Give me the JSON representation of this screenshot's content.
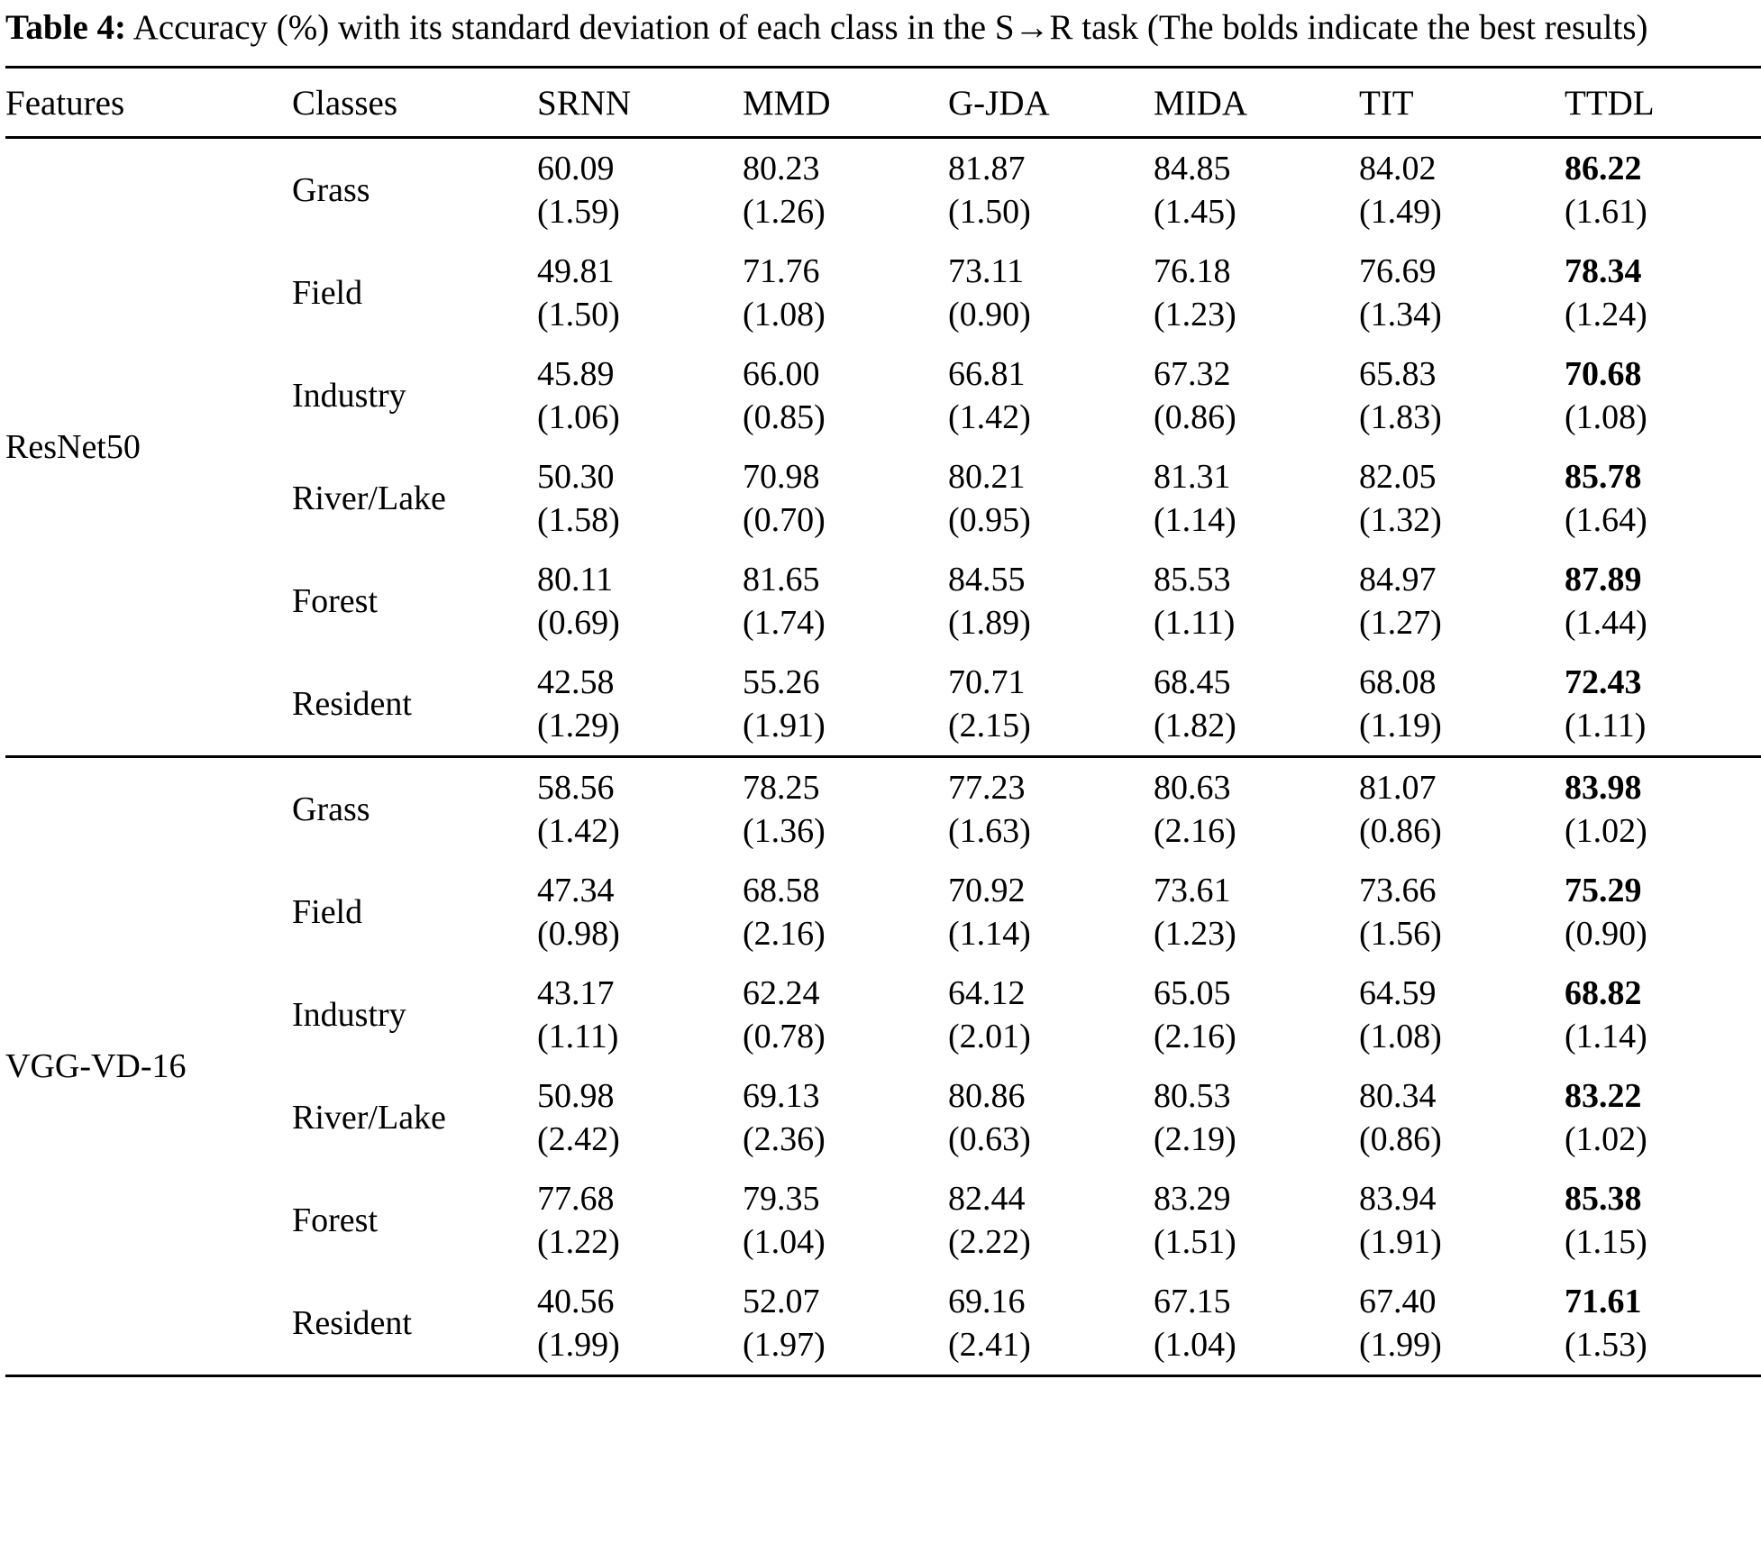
{
  "caption": {
    "label": "Table 4:",
    "text": " Accuracy (%) with its standard deviation of each class in the S→R task (The bolds indicate the best results)"
  },
  "table": {
    "columns": [
      "Features",
      "Classes",
      "SRNN",
      "MMD",
      "G-JDA",
      "MIDA",
      "TIT",
      "TTDL"
    ],
    "bold_column_index": 5,
    "groups": [
      {
        "feature": "ResNet50",
        "rows": [
          {
            "class": "Grass",
            "values": [
              "60.09",
              "80.23",
              "81.87",
              "84.85",
              "84.02",
              "86.22"
            ],
            "stds": [
              "(1.59)",
              "(1.26)",
              "(1.50)",
              "(1.45)",
              "(1.49)",
              "(1.61)"
            ]
          },
          {
            "class": "Field",
            "values": [
              "49.81",
              "71.76",
              "73.11",
              "76.18",
              "76.69",
              "78.34"
            ],
            "stds": [
              "(1.50)",
              "(1.08)",
              "(0.90)",
              "(1.23)",
              "(1.34)",
              "(1.24)"
            ]
          },
          {
            "class": "Industry",
            "values": [
              "45.89",
              "66.00",
              "66.81",
              "67.32",
              "65.83",
              "70.68"
            ],
            "stds": [
              "(1.06)",
              "(0.85)",
              "(1.42)",
              "(0.86)",
              "(1.83)",
              "(1.08)"
            ]
          },
          {
            "class": "River/Lake",
            "values": [
              "50.30",
              "70.98",
              "80.21",
              "81.31",
              "82.05",
              "85.78"
            ],
            "stds": [
              "(1.58)",
              "(0.70)",
              "(0.95)",
              "(1.14)",
              "(1.32)",
              "(1.64)"
            ]
          },
          {
            "class": "Forest",
            "values": [
              "80.11",
              "81.65",
              "84.55",
              "85.53",
              "84.97",
              "87.89"
            ],
            "stds": [
              "(0.69)",
              "(1.74)",
              "(1.89)",
              "(1.11)",
              "(1.27)",
              "(1.44)"
            ]
          },
          {
            "class": "Resident",
            "values": [
              "42.58",
              "55.26",
              "70.71",
              "68.45",
              "68.08",
              "72.43"
            ],
            "stds": [
              "(1.29)",
              "(1.91)",
              "(2.15)",
              "(1.82)",
              "(1.19)",
              "(1.11)"
            ]
          }
        ]
      },
      {
        "feature": "VGG-VD-16",
        "rows": [
          {
            "class": "Grass",
            "values": [
              "58.56",
              "78.25",
              "77.23",
              "80.63",
              "81.07",
              "83.98"
            ],
            "stds": [
              "(1.42)",
              "(1.36)",
              "(1.63)",
              "(2.16)",
              "(0.86)",
              "(1.02)"
            ]
          },
          {
            "class": "Field",
            "values": [
              "47.34",
              "68.58",
              "70.92",
              "73.61",
              "73.66",
              "75.29"
            ],
            "stds": [
              "(0.98)",
              "(2.16)",
              "(1.14)",
              "(1.23)",
              "(1.56)",
              "(0.90)"
            ]
          },
          {
            "class": "Industry",
            "values": [
              "43.17",
              "62.24",
              "64.12",
              "65.05",
              "64.59",
              "68.82"
            ],
            "stds": [
              "(1.11)",
              "(0.78)",
              "(2.01)",
              "(2.16)",
              "(1.08)",
              "(1.14)"
            ]
          },
          {
            "class": "River/Lake",
            "values": [
              "50.98",
              "69.13",
              "80.86",
              "80.53",
              "80.34",
              "83.22"
            ],
            "stds": [
              "(2.42)",
              "(2.36)",
              "(0.63)",
              "(2.19)",
              "(0.86)",
              "(1.02)"
            ]
          },
          {
            "class": "Forest",
            "values": [
              "77.68",
              "79.35",
              "82.44",
              "83.29",
              "83.94",
              "85.38"
            ],
            "stds": [
              "(1.22)",
              "(1.04)",
              "(2.22)",
              "(1.51)",
              "(1.91)",
              "(1.15)"
            ]
          },
          {
            "class": "Resident",
            "values": [
              "40.56",
              "52.07",
              "69.16",
              "67.15",
              "67.40",
              "71.61"
            ],
            "stds": [
              "(1.99)",
              "(1.97)",
              "(2.41)",
              "(1.04)",
              "(1.99)",
              "(1.53)"
            ]
          }
        ]
      }
    ]
  }
}
